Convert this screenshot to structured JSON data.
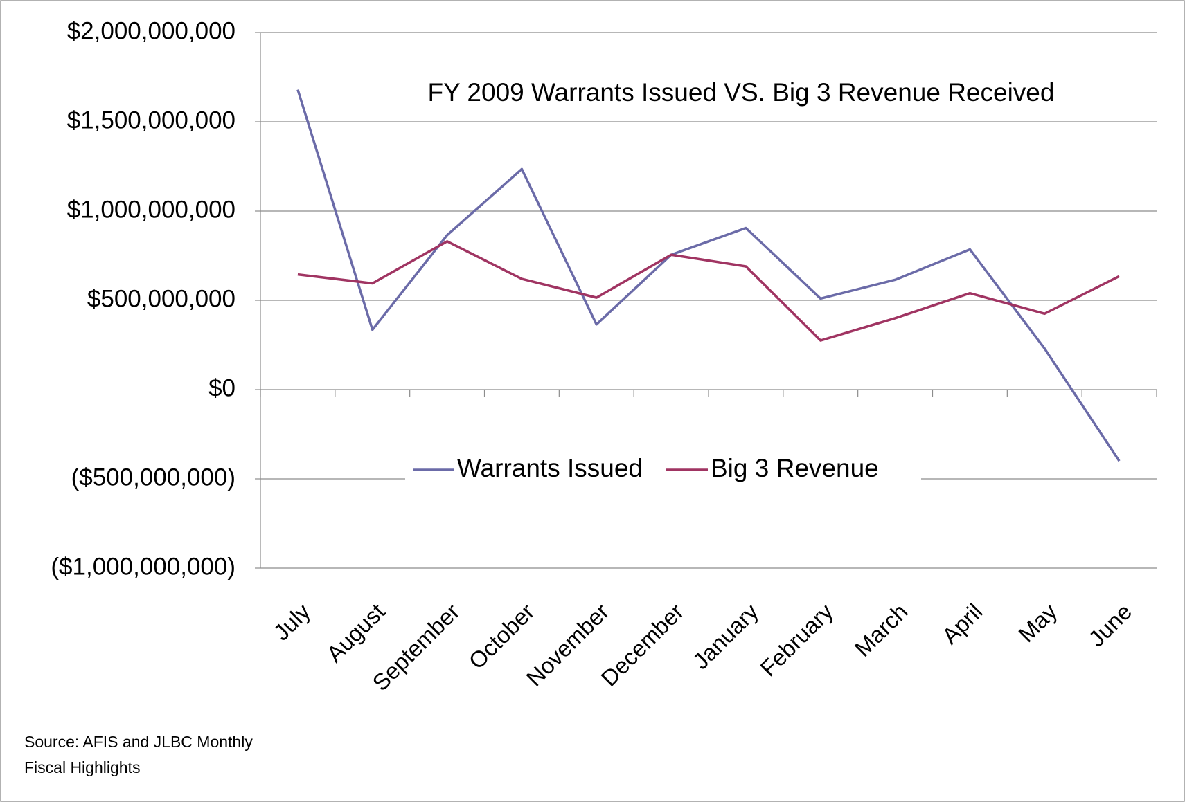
{
  "chart_data": {
    "type": "line",
    "title": "FY 2009 Warrants Issued VS. Big 3 Revenue Received",
    "annotation": "Source: AFIS and JLBC Monthly Fiscal Highlights",
    "categories": [
      "July",
      "August",
      "September",
      "October",
      "November",
      "December",
      "January",
      "February",
      "March",
      "April",
      "May",
      "June"
    ],
    "series": [
      {
        "name": "Warrants Issued",
        "color": "#6b6ba8",
        "values": [
          1680000000,
          335000000,
          865000000,
          1235000000,
          365000000,
          755000000,
          905000000,
          510000000,
          615000000,
          785000000,
          230000000,
          -400000000
        ]
      },
      {
        "name": "Big 3 Revenue",
        "color": "#a03462",
        "values": [
          645000000,
          595000000,
          830000000,
          620000000,
          515000000,
          755000000,
          690000000,
          275000000,
          400000000,
          540000000,
          425000000,
          635000000
        ]
      }
    ],
    "ylim": [
      -1000000000,
      2000000000
    ],
    "yticks": [
      {
        "value": -1000000000,
        "label": "($1,000,000,000)"
      },
      {
        "value": -500000000,
        "label": "($500,000,000)"
      },
      {
        "value": 0,
        "label": "$0"
      },
      {
        "value": 500000000,
        "label": "$500,000,000"
      },
      {
        "value": 1000000000,
        "label": "$1,000,000,000"
      },
      {
        "value": 1500000000,
        "label": "$1,500,000,000"
      },
      {
        "value": 2000000000,
        "label": "$2,000,000,000"
      }
    ],
    "grid": true,
    "legend": "center"
  }
}
